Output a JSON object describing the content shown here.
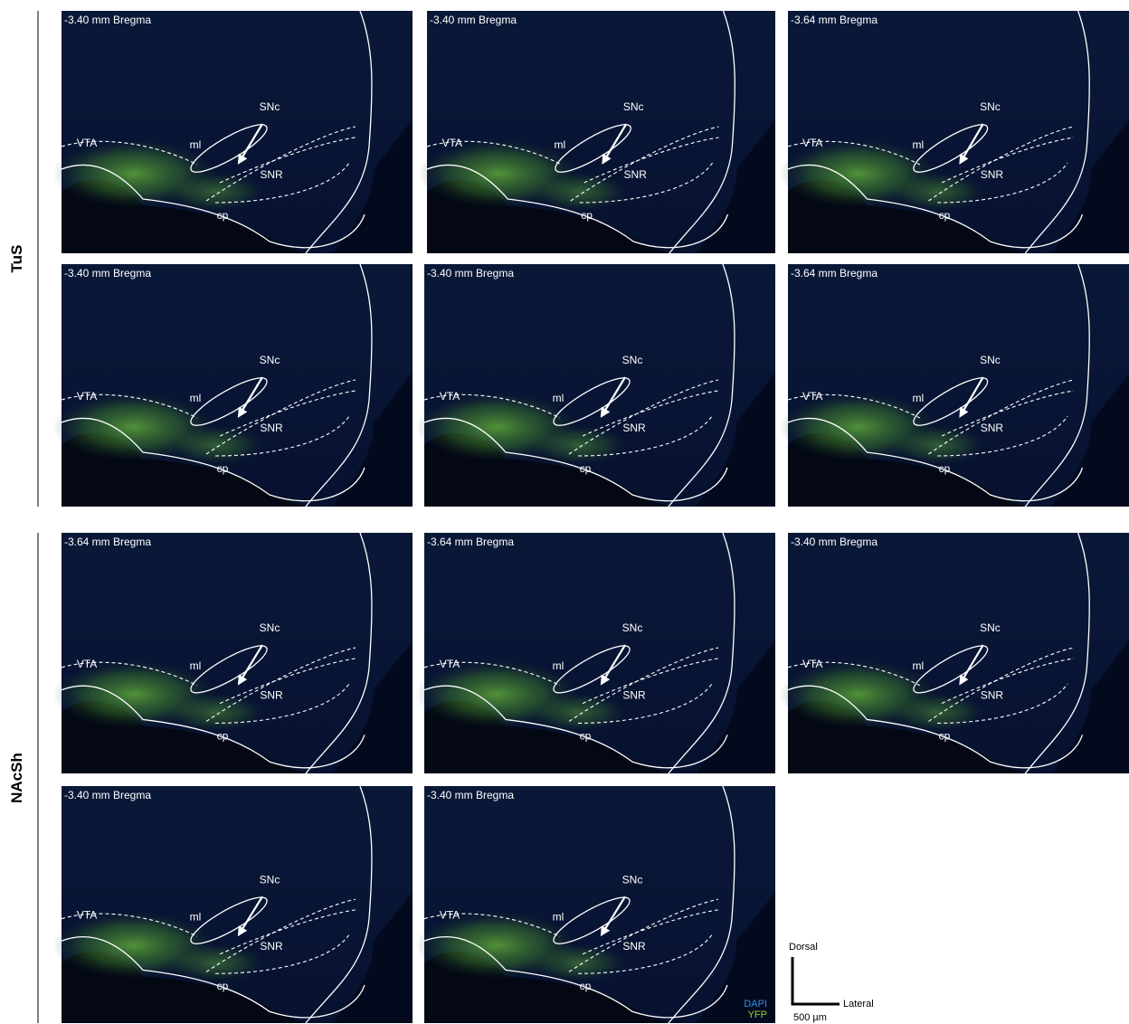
{
  "groups": [
    {
      "label": "TuS",
      "panels": [
        {
          "bregma": "-3.40 mm Bregma",
          "regions": {
            "vta": "VTA",
            "ml": "ml",
            "snc": "SNc",
            "snr": "SNR",
            "cp": "cp"
          }
        },
        {
          "bregma": "-3.40 mm Bregma",
          "regions": {
            "vta": "VTA",
            "ml": "ml",
            "snc": "SNc",
            "snr": "SNR",
            "cp": "cp"
          }
        },
        {
          "bregma": "-3.64 mm Bregma",
          "regions": {
            "vta": "VTA",
            "ml": "ml",
            "snc": "SNc",
            "snr": "SNR",
            "cp": "cp"
          }
        },
        {
          "bregma": "-3.40 mm Bregma",
          "regions": {
            "vta": "VTA",
            "ml": "ml",
            "snc": "SNc",
            "snr": "SNR",
            "cp": "cp"
          }
        },
        {
          "bregma": "-3.40 mm Bregma",
          "regions": {
            "vta": "VTA",
            "ml": "ml",
            "snc": "SNc",
            "snr": "SNR",
            "cp": "cp"
          }
        },
        {
          "bregma": "-3.64 mm Bregma",
          "regions": {
            "vta": "VTA",
            "ml": "ml",
            "snc": "SNc",
            "snr": "SNR",
            "cp": "cp"
          }
        }
      ]
    },
    {
      "label": "NAcSh",
      "panels": [
        {
          "bregma": "-3.64 mm Bregma",
          "regions": {
            "vta": "VTA",
            "ml": "ml",
            "snc": "SNc",
            "snr": "SNR",
            "cp": "cp"
          }
        },
        {
          "bregma": "-3.64 mm Bregma",
          "regions": {
            "vta": "VTA",
            "ml": "ml",
            "snc": "SNc",
            "snr": "SNR",
            "cp": "cp"
          }
        },
        {
          "bregma": "-3.40 mm Bregma",
          "regions": {
            "vta": "VTA",
            "ml": "ml",
            "snc": "SNc",
            "snr": "SNR",
            "cp": "cp"
          }
        },
        {
          "bregma": "-3.40 mm Bregma",
          "regions": {
            "vta": "VTA",
            "ml": "ml",
            "snc": "SNc",
            "snr": "SNR",
            "cp": "cp"
          }
        },
        {
          "bregma": "-3.40 mm Bregma",
          "regions": {
            "vta": "VTA",
            "ml": "ml",
            "snc": "SNc",
            "snr": "SNR",
            "cp": "cp"
          }
        }
      ]
    }
  ],
  "legend": {
    "channels": [
      "DAPI",
      "YFP"
    ],
    "dorsal": "Dorsal",
    "lateral": "Lateral",
    "scale": "500 µm"
  }
}
